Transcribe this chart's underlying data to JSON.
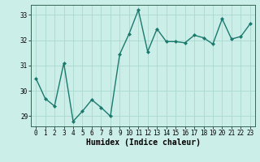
{
  "x": [
    0,
    1,
    2,
    3,
    4,
    5,
    6,
    7,
    8,
    9,
    10,
    11,
    12,
    13,
    14,
    15,
    16,
    17,
    18,
    19,
    20,
    21,
    22,
    23
  ],
  "y": [
    30.5,
    29.7,
    29.4,
    31.1,
    28.8,
    29.2,
    29.65,
    29.35,
    29.0,
    31.45,
    32.25,
    33.2,
    31.55,
    32.45,
    31.95,
    31.95,
    31.9,
    32.2,
    32.1,
    31.85,
    32.85,
    32.05,
    32.15,
    32.65
  ],
  "line_color": "#1a7a6e",
  "marker": "D",
  "markersize": 2.0,
  "linewidth": 1.0,
  "xlabel": "Humidex (Indice chaleur)",
  "xlim": [
    -0.5,
    23.5
  ],
  "ylim": [
    28.6,
    33.4
  ],
  "yticks": [
    29,
    30,
    31,
    32,
    33
  ],
  "xtick_labels": [
    "0",
    "1",
    "2",
    "3",
    "4",
    "5",
    "6",
    "7",
    "8",
    "9",
    "10",
    "11",
    "12",
    "13",
    "14",
    "15",
    "16",
    "17",
    "18",
    "19",
    "20",
    "21",
    "22",
    "23"
  ],
  "bg_color": "#cceee8",
  "grid_color": "#aad8d0",
  "tick_fontsize": 5.5,
  "xlabel_fontsize": 7.0,
  "spine_color": "#336655"
}
